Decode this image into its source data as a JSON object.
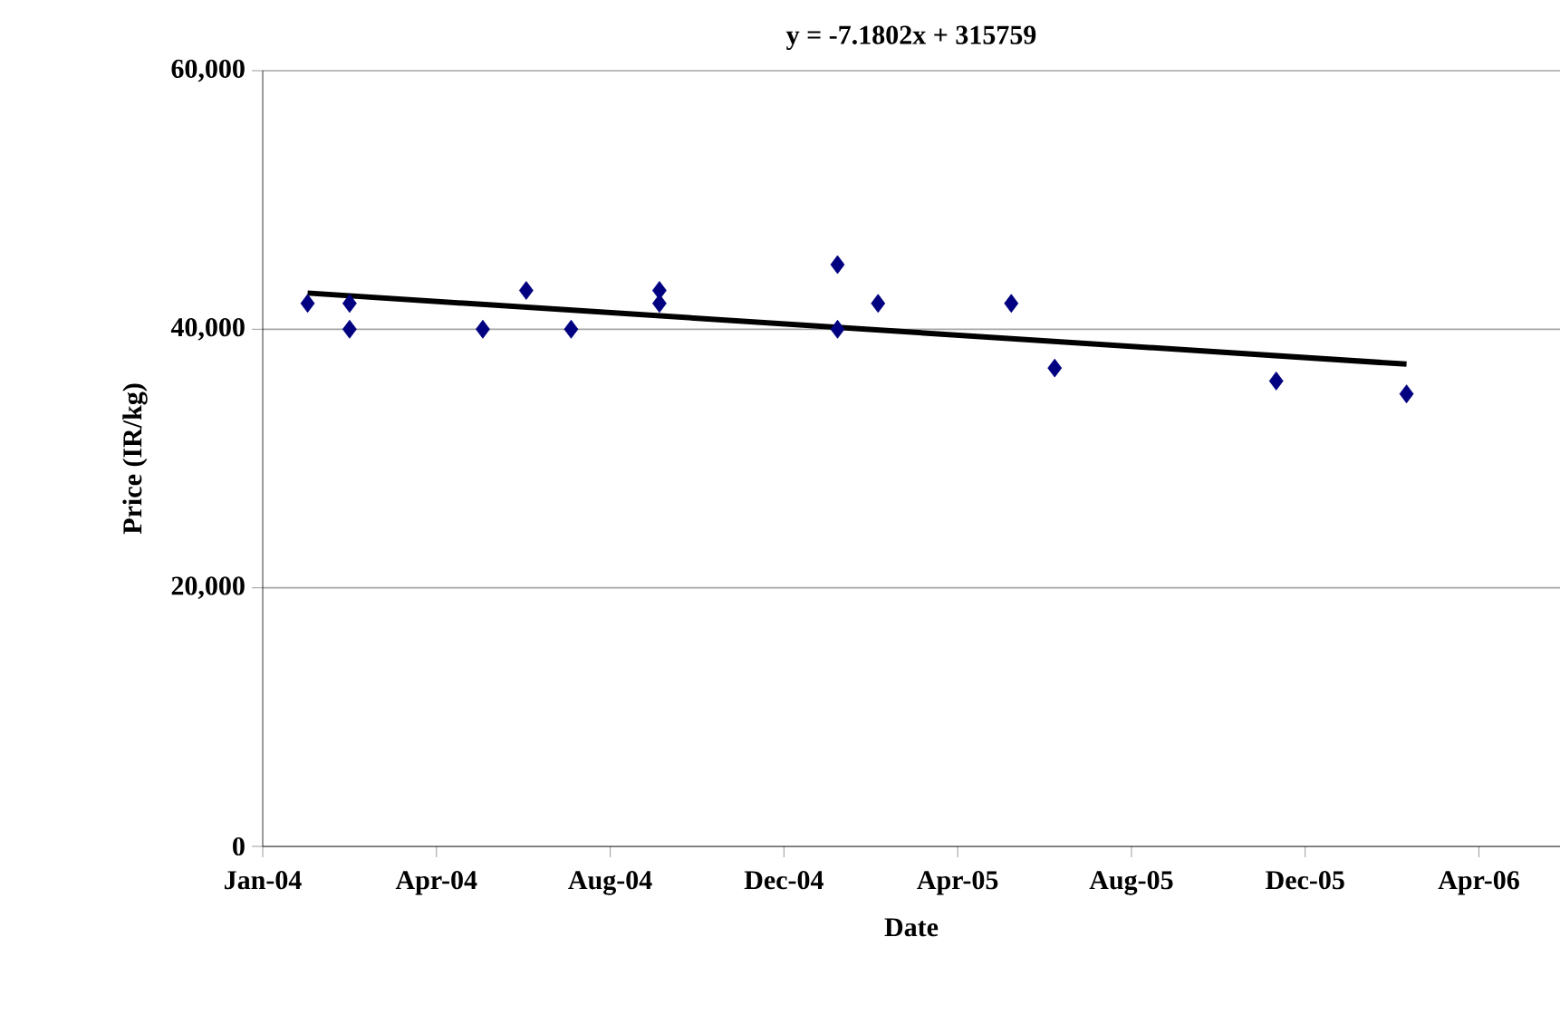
{
  "chart_data": {
    "type": "scatter",
    "title": "y = -7.1802x + 315759",
    "xlabel": "Date",
    "ylabel": "Price (IR/kg)",
    "xlim": [
      "2004-01-01",
      "2006-06-15"
    ],
    "xticks": [
      {
        "value": "2004-01-01",
        "label": "Jan-04"
      },
      {
        "value": "2004-04-30",
        "label": "Apr-04"
      },
      {
        "value": "2004-08-28",
        "label": "Aug-04"
      },
      {
        "value": "2004-12-26",
        "label": "Dec-04"
      },
      {
        "value": "2005-04-25",
        "label": "Apr-05"
      },
      {
        "value": "2005-08-23",
        "label": "Aug-05"
      },
      {
        "value": "2005-12-21",
        "label": "Dec-05"
      },
      {
        "value": "2006-04-20",
        "label": "Apr-06"
      }
    ],
    "ylim": [
      0,
      60000
    ],
    "yticks": [
      {
        "value": 0,
        "label": "0"
      },
      {
        "value": 20000,
        "label": "20,000"
      },
      {
        "value": 40000,
        "label": "40,000"
      },
      {
        "value": 60000,
        "label": "60,000"
      }
    ],
    "grid": "y",
    "series": [
      {
        "marker": "diamond",
        "color": "#000080",
        "x": [
          "2004-02-01",
          "2004-03-01",
          "2004-03-01",
          "2004-06-01",
          "2004-07-01",
          "2004-08-01",
          "2004-10-01",
          "2004-10-01",
          "2005-02-01",
          "2005-02-01",
          "2005-03-01",
          "2005-06-01",
          "2005-07-01",
          "2005-12-01",
          "2006-03-01"
        ],
        "values": [
          42000,
          42000,
          40000,
          40000,
          43000,
          40000,
          43000,
          42000,
          45000,
          40000,
          42000,
          42000,
          37000,
          36000,
          35000
        ]
      },
      {
        "type": "line",
        "marker": "none",
        "line_style": "solid",
        "color": "#000000",
        "x": [
          "2004-02-01",
          "2006-03-01"
        ],
        "values": [
          42800,
          37300
        ]
      }
    ]
  }
}
